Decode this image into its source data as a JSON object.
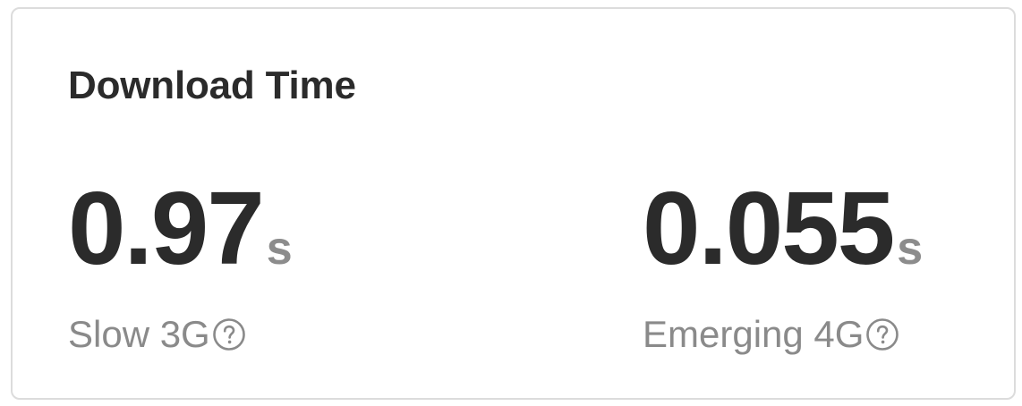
{
  "card": {
    "title": "Download Time",
    "metrics": [
      {
        "value": "0.97",
        "unit": "s",
        "label": "Slow 3G",
        "help_icon": "question-circle-icon"
      },
      {
        "value": "0.055",
        "unit": "s",
        "label": "Emerging 4G",
        "help_icon": "question-circle-icon"
      }
    ]
  },
  "colors": {
    "primary_text": "#2b2b2b",
    "secondary_text": "#8a8a8a",
    "border": "#dcdcdc"
  }
}
